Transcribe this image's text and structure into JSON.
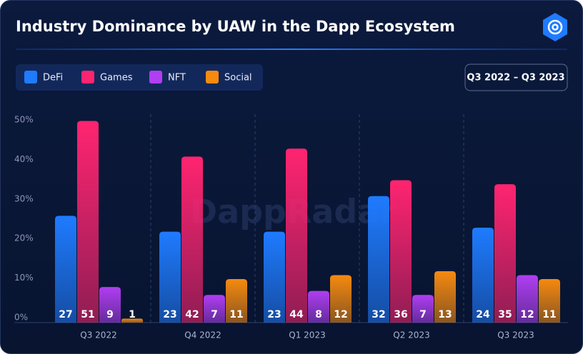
{
  "chart_data": {
    "type": "bar",
    "title": "Industry Dominance by UAW in the Dapp Ecosystem",
    "period": "Q3 2022 – Q3 2023",
    "watermark": "DappRadar",
    "categories": [
      "Q3 2022",
      "Q4 2022",
      "Q1 2023",
      "Q2 2023",
      "Q3 2023"
    ],
    "series": [
      {
        "name": "DeFi",
        "color": "#1f7bff",
        "values": [
          27,
          23,
          23,
          32,
          24
        ]
      },
      {
        "name": "Games",
        "color": "#ff2470",
        "values": [
          51,
          42,
          44,
          36,
          35
        ]
      },
      {
        "name": "NFT",
        "color": "#b03ef2",
        "values": [
          9,
          7,
          8,
          7,
          12
        ]
      },
      {
        "name": "Social",
        "color": "#f58a10",
        "values": [
          1,
          11,
          12,
          13,
          11
        ]
      }
    ],
    "ylim": [
      0,
      50
    ],
    "yticks": [
      {
        "value": 0,
        "label": "0%"
      },
      {
        "value": 10,
        "label": "10%"
      },
      {
        "value": 20,
        "label": "20%"
      },
      {
        "value": 30,
        "label": "30%"
      },
      {
        "value": 40,
        "label": "40%"
      },
      {
        "value": 50,
        "label": "50%"
      }
    ],
    "legend": "top-left"
  }
}
